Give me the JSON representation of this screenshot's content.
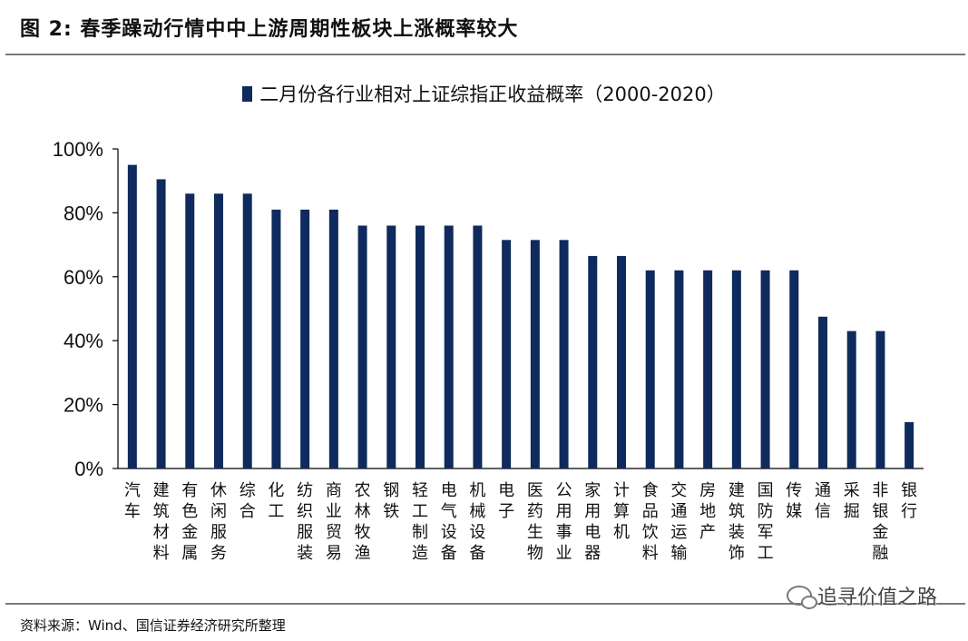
{
  "figure": {
    "title": "图  2:  春季躁动行情中中上游周期性板块上涨概率较大",
    "source": "资料来源：Wind、国信证券经济研究所整理",
    "watermark": "追寻价值之路"
  },
  "chart_data": {
    "type": "bar",
    "legend": "二月份各行业相对上证综指正收益概率（2000-2020）",
    "series": [
      {
        "name": "二月份各行业相对上证综指正收益概率（2000-2020）",
        "color": "#0f2a5c",
        "values": [
          95,
          90.5,
          86,
          86,
          86,
          81,
          81,
          81,
          76,
          76,
          76,
          76,
          76,
          71.5,
          71.5,
          71.5,
          66.5,
          66.5,
          62,
          62,
          62,
          62,
          62,
          62,
          47.5,
          43,
          43,
          14.5
        ]
      }
    ],
    "categories": [
      "汽车",
      "建筑材料",
      "有色金属",
      "休闲服务",
      "综合",
      "化工",
      "纺织服装",
      "商业贸易",
      "农林牧渔",
      "钢铁",
      "轻工制造",
      "电气设备",
      "机械设备",
      "电子",
      "医药生物",
      "公用事业",
      "家用电器",
      "计算机",
      "食品饮料",
      "交通运输",
      "房地产",
      "建筑装饰",
      "国防军工",
      "传媒",
      "通信",
      "采掘",
      "非银金融",
      "银行"
    ],
    "y_ticks": [
      "0%",
      "20%",
      "40%",
      "60%",
      "80%",
      "100%"
    ],
    "ylim": [
      0,
      100
    ],
    "y_unit": "%",
    "grid": false,
    "legend_position": "top-center"
  }
}
